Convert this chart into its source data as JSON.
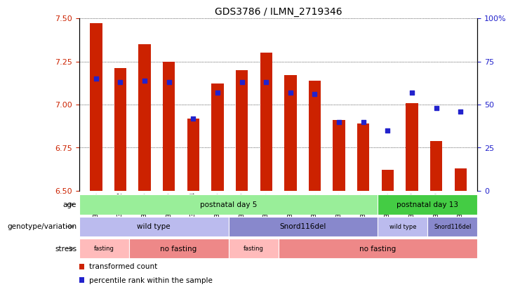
{
  "title": "GDS3786 / ILMN_2719346",
  "samples": [
    "GSM374088",
    "GSM374092",
    "GSM374086",
    "GSM374090",
    "GSM374094",
    "GSM374096",
    "GSM374089",
    "GSM374093",
    "GSM374087",
    "GSM374091",
    "GSM374095",
    "GSM374097",
    "GSM374098",
    "GSM374100",
    "GSM374099",
    "GSM374101"
  ],
  "bar_values": [
    7.47,
    7.21,
    7.35,
    7.25,
    6.92,
    7.12,
    7.2,
    7.3,
    7.17,
    7.14,
    6.91,
    6.89,
    6.62,
    7.01,
    6.79,
    6.63
  ],
  "dot_values": [
    65,
    63,
    64,
    63,
    42,
    57,
    63,
    63,
    57,
    56,
    40,
    40,
    35,
    57,
    48,
    46
  ],
  "ylim": [
    6.5,
    7.5
  ],
  "yticks": [
    6.5,
    6.75,
    7.0,
    7.25,
    7.5
  ],
  "bar_color": "#cc2200",
  "dot_color": "#2222cc",
  "bar_base": 6.5,
  "age_row": [
    {
      "label": "postnatal day 5",
      "start": 0,
      "end": 12,
      "color": "#99ee99"
    },
    {
      "label": "postnatal day 13",
      "start": 12,
      "end": 16,
      "color": "#44cc44"
    }
  ],
  "genotype_row": [
    {
      "label": "wild type",
      "start": 0,
      "end": 6,
      "color": "#bbbbee"
    },
    {
      "label": "Snord116del",
      "start": 6,
      "end": 12,
      "color": "#8888cc"
    },
    {
      "label": "wild type",
      "start": 12,
      "end": 14,
      "color": "#bbbbee"
    },
    {
      "label": "Snord116del",
      "start": 14,
      "end": 16,
      "color": "#8888cc"
    }
  ],
  "stress_row": [
    {
      "label": "fasting",
      "start": 0,
      "end": 2,
      "color": "#ffbbbb"
    },
    {
      "label": "no fasting",
      "start": 2,
      "end": 6,
      "color": "#ee8888"
    },
    {
      "label": "fasting",
      "start": 6,
      "end": 8,
      "color": "#ffbbbb"
    },
    {
      "label": "no fasting",
      "start": 8,
      "end": 16,
      "color": "#ee8888"
    }
  ],
  "row_label_info": [
    {
      "label": "age"
    },
    {
      "label": "genotype/variation"
    },
    {
      "label": "stress"
    }
  ],
  "legend_items": [
    {
      "label": "transformed count",
      "color": "#cc2200"
    },
    {
      "label": "percentile rank within the sample",
      "color": "#2222cc"
    }
  ]
}
